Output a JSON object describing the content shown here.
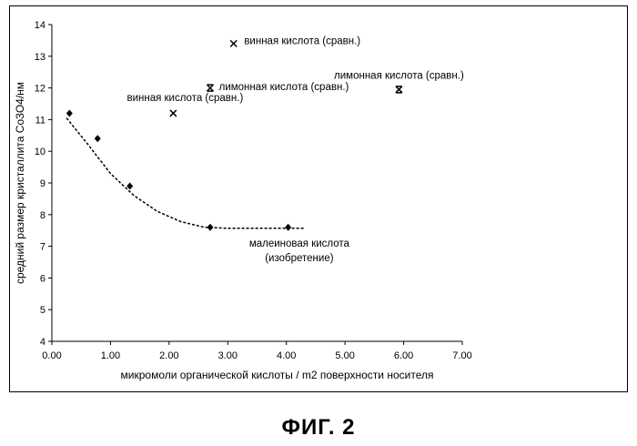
{
  "figure_caption": "ФИГ. 2",
  "chart_data": {
    "type": "scatter",
    "xlabel": "микромоли органической кислоты / m2 поверхности носителя",
    "ylabel": "средний размер кристаллита Co3O4/нм",
    "xlim": [
      0,
      7
    ],
    "ylim": [
      4,
      14
    ],
    "x_ticks": [
      "0.00",
      "1.00",
      "2.00",
      "3.00",
      "4.00",
      "5.00",
      "6.00",
      "7.00"
    ],
    "y_ticks": [
      "4",
      "5",
      "6",
      "7",
      "8",
      "9",
      "10",
      "11",
      "12",
      "13",
      "14"
    ],
    "grid": false,
    "series": [
      {
        "marker": "diamond",
        "points": [
          {
            "x": 0.3,
            "y": 11.2
          },
          {
            "x": 0.78,
            "y": 10.4
          },
          {
            "x": 1.33,
            "y": 8.9
          },
          {
            "x": 2.7,
            "y": 7.6
          },
          {
            "x": 4.03,
            "y": 7.6
          }
        ]
      },
      {
        "marker": "x",
        "points": [
          {
            "x": 2.07,
            "y": 11.2
          },
          {
            "x": 3.1,
            "y": 13.4
          }
        ]
      },
      {
        "marker": "asterisk",
        "points": [
          {
            "x": 2.7,
            "y": 12.0
          },
          {
            "x": 5.92,
            "y": 11.95
          }
        ]
      }
    ],
    "trendline": {
      "style": "dashed",
      "x": [
        0.25,
        0.6,
        1.0,
        1.4,
        1.8,
        2.2,
        2.6,
        3.0,
        3.5,
        4.0,
        4.3
      ],
      "y": [
        11.05,
        10.25,
        9.3,
        8.6,
        8.1,
        7.78,
        7.6,
        7.57,
        7.57,
        7.57,
        7.57
      ]
    },
    "annotations": [
      {
        "text": "винная кислота (сравн.)",
        "x": 3.28,
        "y": 13.5,
        "anchor": "start"
      },
      {
        "text": "лимонная кислота (сравн.)",
        "x": 2.85,
        "y": 12.05,
        "anchor": "start"
      },
      {
        "text": "лимонная кислота (сравн.)",
        "x": 5.92,
        "y": 12.4,
        "anchor": "middle"
      },
      {
        "text": "винная кислота (сравн.)",
        "x": 1.28,
        "y": 11.7,
        "anchor": "start"
      },
      {
        "text": "малеиновая кислота",
        "x": 4.22,
        "y": 7.1,
        "anchor": "middle"
      },
      {
        "text": "(изобретение)",
        "x": 4.22,
        "y": 6.65,
        "anchor": "middle"
      }
    ]
  }
}
